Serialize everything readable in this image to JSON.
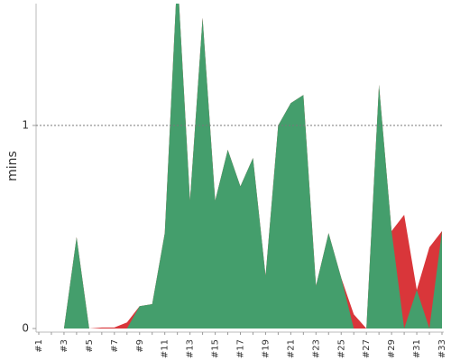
{
  "chart_data": {
    "type": "area",
    "y_label": "mins",
    "categories": [
      "#1",
      null,
      "#3",
      null,
      "#5",
      null,
      "#7",
      null,
      "#9",
      null,
      "#11",
      null,
      "#13",
      null,
      "#15",
      null,
      "#17",
      null,
      "#19",
      null,
      "#21",
      null,
      "#23",
      null,
      "#25",
      null,
      "#27",
      null,
      "#29",
      null,
      "#31",
      null,
      "#33"
    ],
    "series": [
      {
        "color": "#d9363a",
        "values": [
          0,
          0,
          0,
          0.45,
          0,
          0.005,
          0.005,
          0.03,
          0.11,
          0.12,
          0.47,
          1.75,
          0.63,
          1.53,
          0.63,
          0.88,
          0.7,
          0.84,
          0.26,
          1.0,
          1.11,
          1.15,
          0.21,
          0.47,
          0.25,
          0.07,
          0,
          1.2,
          0.48,
          0.56,
          0.19,
          0.4,
          0.48
        ]
      },
      {
        "color": "#449e6c",
        "values": [
          0,
          0,
          0,
          0.45,
          0,
          0,
          0,
          0,
          0.11,
          0.12,
          0.47,
          1.75,
          0.63,
          1.53,
          0.63,
          0.88,
          0.7,
          0.84,
          0.26,
          1.0,
          1.11,
          1.15,
          0.21,
          0.47,
          0.25,
          0,
          0,
          1.2,
          0.48,
          0,
          0.19,
          0,
          0.48
        ]
      }
    ],
    "ylim": [
      0,
      1.6
    ],
    "yticks": [
      0,
      1
    ],
    "grid": true
  }
}
